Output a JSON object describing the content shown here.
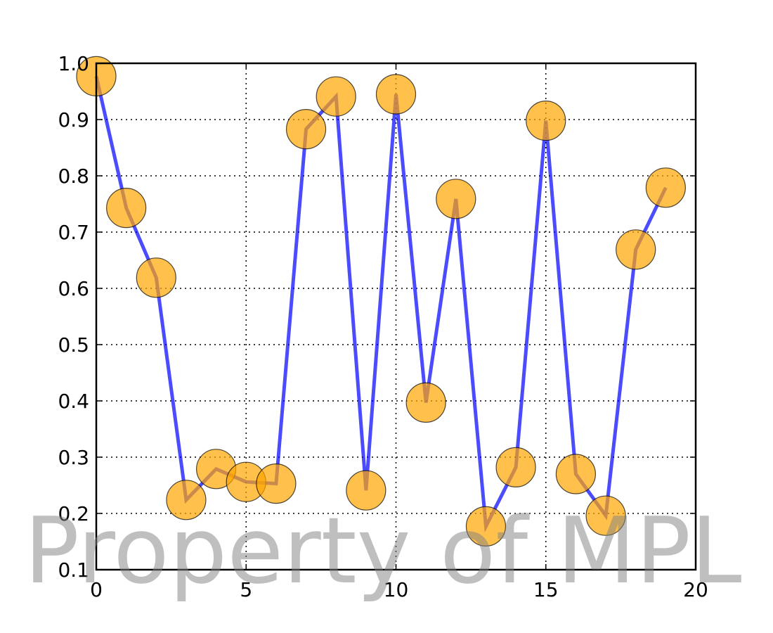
{
  "chart_data": {
    "type": "line",
    "title": "",
    "xlabel": "",
    "ylabel": "",
    "xlim": [
      0,
      20
    ],
    "ylim": [
      0.1,
      1.0
    ],
    "x_ticks": [
      0,
      5,
      10,
      15,
      20
    ],
    "x_tick_labels": [
      "0",
      "5",
      "10",
      "15",
      "20"
    ],
    "y_ticks": [
      0.1,
      0.2,
      0.3,
      0.4,
      0.5,
      0.6,
      0.7,
      0.8,
      0.9,
      1.0
    ],
    "y_tick_labels": [
      "0.1",
      "0.2",
      "0.3",
      "0.4",
      "0.5",
      "0.6",
      "0.7",
      "0.8",
      "0.9",
      "1.0"
    ],
    "grid": true,
    "series": [
      {
        "x": [
          0,
          1,
          2,
          3,
          4,
          5,
          6,
          7,
          8,
          9,
          10,
          11,
          12,
          13,
          14,
          15,
          16,
          17,
          18,
          19
        ],
        "values": [
          0.977,
          0.743,
          0.619,
          0.224,
          0.279,
          0.256,
          0.253,
          0.883,
          0.941,
          0.241,
          0.945,
          0.397,
          0.759,
          0.177,
          0.282,
          0.898,
          0.27,
          0.196,
          0.669,
          0.779
        ],
        "line_color": "#0000ff",
        "marker_color": "#ffa500"
      }
    ],
    "watermark": "Property of MPL"
  }
}
